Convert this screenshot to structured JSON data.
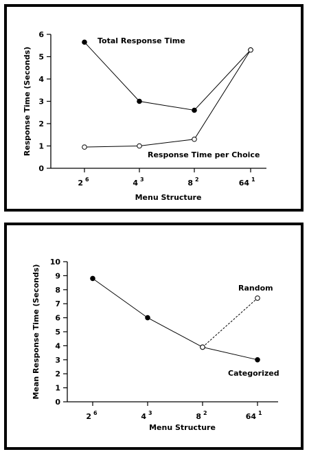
{
  "chart_data": [
    {
      "type": "line",
      "categories": [
        "2",
        "4",
        "8",
        "64"
      ],
      "category_exponents": [
        "6",
        "3",
        "2",
        "1"
      ],
      "xlabel": "Menu Structure",
      "ylabel": "Response Time (Seconds)",
      "ylim": [
        0,
        6
      ],
      "yticks": [
        "0",
        "1",
        "2",
        "3",
        "4",
        "5",
        "6"
      ],
      "grid": false,
      "series": [
        {
          "name": "Total Response Time",
          "values": [
            5.65,
            3.0,
            2.6,
            5.3
          ],
          "marker": "filled"
        },
        {
          "name": "Response Time per Choice",
          "values": [
            0.95,
            1.0,
            1.3,
            5.3
          ],
          "marker": "open"
        }
      ]
    },
    {
      "type": "line",
      "categories": [
        "2",
        "4",
        "8",
        "64"
      ],
      "category_exponents": [
        "6",
        "3",
        "2",
        "1"
      ],
      "xlabel": "Menu Structure",
      "ylabel": "Mean Response Time (Seconds)",
      "ylim": [
        0,
        10
      ],
      "yticks": [
        "0",
        "1",
        "2",
        "3",
        "4",
        "5",
        "6",
        "7",
        "8",
        "9",
        "10"
      ],
      "grid": false,
      "series": [
        {
          "name": "Categorized",
          "values": [
            8.8,
            6.0,
            3.9,
            3.0
          ],
          "marker": "filled",
          "line": "solid"
        },
        {
          "name": "Random",
          "values": [
            null,
            null,
            3.9,
            7.4
          ],
          "marker": "open",
          "line": "dashed"
        }
      ]
    }
  ]
}
